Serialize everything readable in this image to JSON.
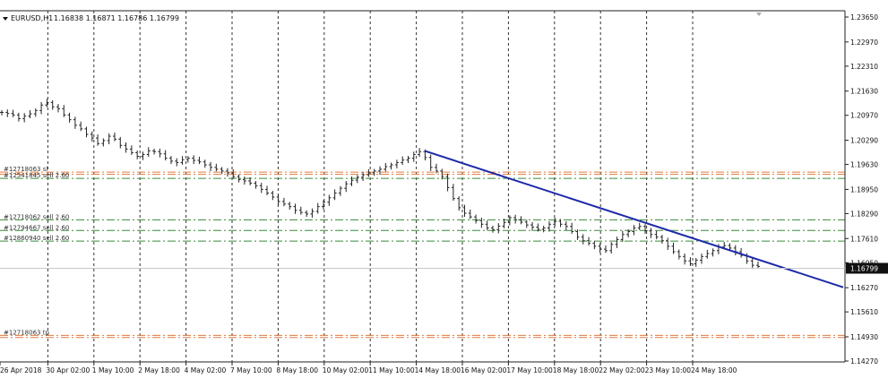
{
  "chart_data": {
    "type": "ohlc",
    "header": {
      "symbol_tf": "EURUSD,H1",
      "ohlc_text": "1.16838 1.16871 1.16786 1.16799"
    },
    "y_ticks": [
      "1.23650",
      "1.22970",
      "1.22310",
      "1.21630",
      "1.20970",
      "1.20290",
      "1.19630",
      "1.18950",
      "1.18290",
      "1.17610",
      "1.16950",
      "1.16270",
      "1.15610",
      "1.14930",
      "1.14270"
    ],
    "current_price_label": "1.16799",
    "current_price": 1.16799,
    "x_ticks": [
      "26 Apr 2018",
      "30 Apr 02:00",
      "1 May 10:00",
      "2 May 18:00",
      "4 May 02:00",
      "7 May 10:00",
      "8 May 18:00",
      "10 May 02:00",
      "11 May 10:00",
      "14 May 18:00",
      "16 May 02:00",
      "17 May 10:00",
      "18 May 18:00",
      "22 May 02:00",
      "23 May 10:00",
      "24 May 18:00"
    ],
    "levels": [
      {
        "label": "#12718063 sl",
        "price": 1.1942,
        "color": "#e07a3f",
        "style": "dashdot"
      },
      {
        "label": "",
        "price": 1.1936,
        "color": "#e07a3f",
        "style": "dashdot"
      },
      {
        "label": "#12541845 sell 2.60",
        "price": 1.1925,
        "color": "#3a8a3a",
        "style": "dashdot"
      },
      {
        "label": "#12718062 sell 2.60",
        "price": 1.1812,
        "color": "#3a8a3a",
        "style": "dashdot"
      },
      {
        "label": "#12794667 sell 2.60",
        "price": 1.1783,
        "color": "#3a8a3a",
        "style": "dashdot"
      },
      {
        "label": "#12860940 sell 2.60",
        "price": 1.1754,
        "color": "#3a8a3a",
        "style": "dashdot"
      },
      {
        "label": "#12718063 tp",
        "price": 1.1497,
        "color": "#e07a3f",
        "style": "dashdot"
      },
      {
        "label": "",
        "price": 1.1491,
        "color": "#e07a3f",
        "style": "dashdot"
      }
    ],
    "trendline": {
      "x1": "14 May 18:00",
      "y1": 1.2,
      "x2": "25 May",
      "y2": 1.1628,
      "color": "#1c2aa8"
    },
    "series": [
      {
        "name": "EURUSD,H1",
        "closes": [
          1.2105,
          1.2102,
          1.2098,
          1.2088,
          1.2095,
          1.2101,
          1.211,
          1.2125,
          1.2132,
          1.212,
          1.2115,
          1.2098,
          1.2085,
          1.207,
          1.206,
          1.2045,
          1.2035,
          1.202,
          1.2028,
          1.204,
          1.2032,
          1.2015,
          1.2005,
          1.1995,
          1.1985,
          1.199,
          1.2,
          1.1998,
          1.1992,
          1.198,
          1.1972,
          1.1968,
          1.1976,
          1.198,
          1.1974,
          1.197,
          1.1962,
          1.1955,
          1.195,
          1.1945,
          1.194,
          1.193,
          1.1922,
          1.1918,
          1.1912,
          1.1905,
          1.1895,
          1.1885,
          1.1874,
          1.1862,
          1.1855,
          1.1848,
          1.1838,
          1.1832,
          1.1828,
          1.1835,
          1.1848,
          1.186,
          1.1872,
          1.1885,
          1.1898,
          1.191,
          1.192,
          1.1928,
          1.1935,
          1.194,
          1.1945,
          1.195,
          1.1957,
          1.1962,
          1.1968,
          1.1975,
          1.198,
          1.199,
          1.1998,
          1.1982,
          1.1955,
          1.1945,
          1.193,
          1.19,
          1.187,
          1.1845,
          1.183,
          1.182,
          1.181,
          1.18,
          1.179,
          1.1785,
          1.1795,
          1.1805,
          1.1818,
          1.1812,
          1.1806,
          1.1798,
          1.1792,
          1.1786,
          1.179,
          1.18,
          1.1808,
          1.18,
          1.1794,
          1.178,
          1.1765,
          1.1755,
          1.1748,
          1.174,
          1.1732,
          1.1728,
          1.1745,
          1.1758,
          1.1772,
          1.178,
          1.179,
          1.1794,
          1.1782,
          1.1772,
          1.1765,
          1.1755,
          1.174,
          1.1725,
          1.1712,
          1.17,
          1.1692,
          1.1702,
          1.1712,
          1.172,
          1.1728,
          1.1738,
          1.1742,
          1.1735,
          1.1725,
          1.1715,
          1.17,
          1.1688,
          1.1685
        ]
      }
    ]
  }
}
